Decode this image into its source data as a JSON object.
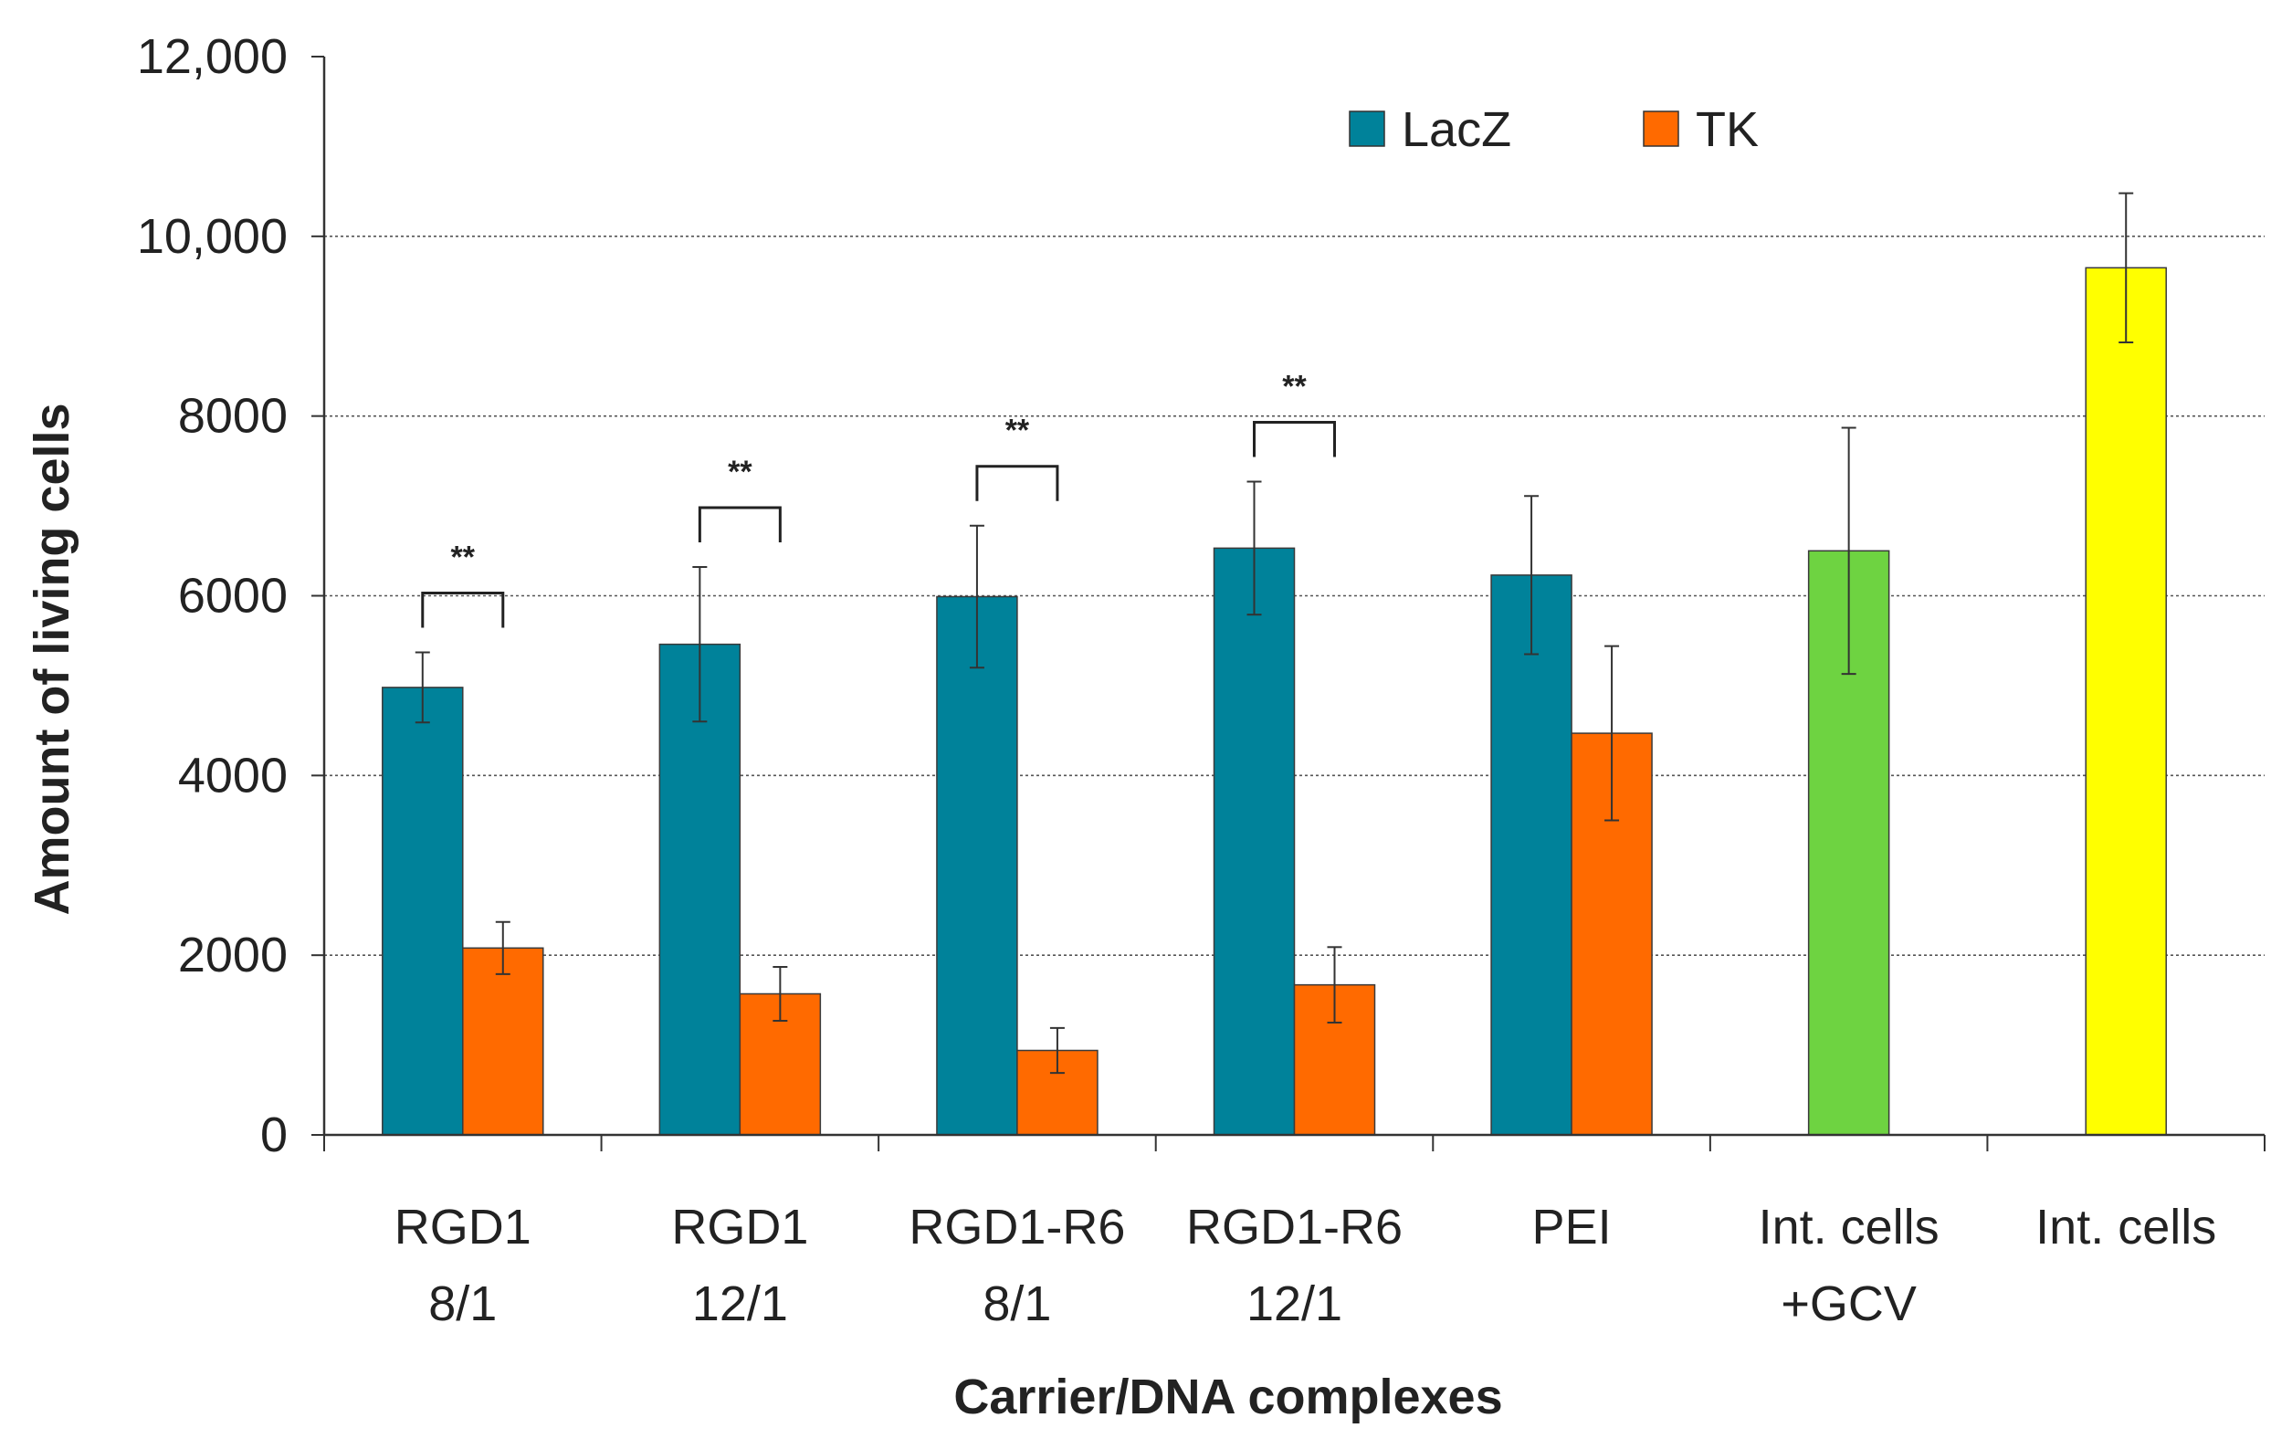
{
  "chart_data": {
    "type": "bar",
    "title": "",
    "xlabel": "Carrier/DNA complexes",
    "ylabel": "Amount of living cells",
    "ylim": [
      0,
      12000
    ],
    "yticks": [
      0,
      2000,
      4000,
      6000,
      8000,
      10000,
      12000
    ],
    "ytick_labels": [
      "0",
      "2000",
      "4000",
      "6000",
      "8000",
      "10,000",
      "12,000"
    ],
    "grid": true,
    "legend_position": "top-center",
    "categories": [
      [
        "RGD1",
        "8/1"
      ],
      [
        "RGD1",
        "12/1"
      ],
      [
        "RGD1-R6",
        "8/1"
      ],
      [
        "RGD1-R6",
        "12/1"
      ],
      [
        "PEI"
      ],
      [
        "Int. cells",
        "+GCV"
      ],
      [
        "Int. cells"
      ]
    ],
    "series": [
      {
        "name": "LacZ",
        "color": "#00829A",
        "values": [
          4980,
          5460,
          5990,
          6530,
          6230,
          null,
          null
        ],
        "errors": [
          390,
          860,
          790,
          740,
          880,
          null,
          null
        ]
      },
      {
        "name": "TK",
        "color": "#FF6A00",
        "values": [
          2080,
          1570,
          940,
          1670,
          4470,
          null,
          null
        ],
        "errors": [
          290,
          300,
          250,
          420,
          970,
          null,
          null
        ]
      }
    ],
    "single_bars": [
      {
        "category_index": 5,
        "value": 6500,
        "error": 1370,
        "color": "#6ED341"
      },
      {
        "category_index": 6,
        "value": 9650,
        "error": 830,
        "color": "#FFFF00"
      }
    ],
    "significance": [
      {
        "category_index": 0,
        "label": "**"
      },
      {
        "category_index": 1,
        "label": "**"
      },
      {
        "category_index": 2,
        "label": "**"
      },
      {
        "category_index": 3,
        "label": "**"
      }
    ],
    "legend": [
      {
        "label": "LacZ",
        "color": "#00829A"
      },
      {
        "label": "TK",
        "color": "#FF6A00"
      }
    ]
  }
}
